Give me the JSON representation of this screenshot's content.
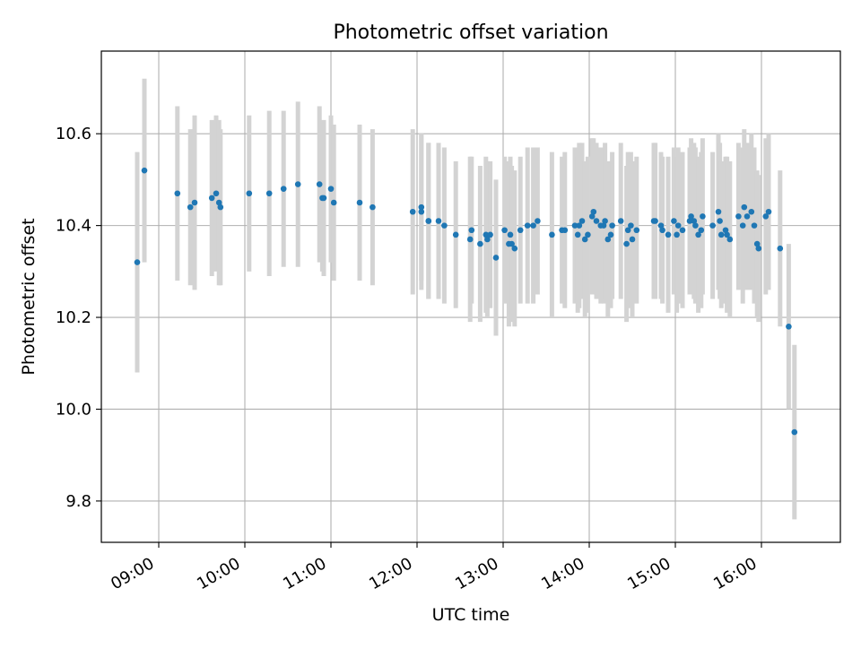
{
  "chart_data": {
    "type": "scatter",
    "title": "Photometric offset variation",
    "xlabel": "UTC time",
    "ylabel": "Photometric offset",
    "xlim": [
      "08:20",
      "16:55"
    ],
    "ylim": [
      9.71,
      10.78
    ],
    "x_ticks": [
      "09:00",
      "10:00",
      "11:00",
      "12:00",
      "13:00",
      "14:00",
      "15:00",
      "16:00"
    ],
    "y_ticks": [
      "9.8",
      "10.0",
      "10.2",
      "10.4",
      "10.6"
    ],
    "grid": true,
    "marker_color": "#1f77b4",
    "errorbar_color": "#d3d3d3",
    "series": [
      {
        "x": [
          "08:45",
          "08:50",
          "09:13",
          "09:22",
          "09:25",
          "09:37",
          "09:40",
          "09:42",
          "09:43",
          "10:03",
          "10:17",
          "10:27",
          "10:37",
          "10:52",
          "10:54",
          "10:55",
          "11:00",
          "11:02",
          "11:20",
          "11:29",
          "11:57",
          "12:03",
          "12:03",
          "12:08",
          "12:08",
          "12:15",
          "12:19",
          "12:27",
          "12:37",
          "12:38",
          "12:44",
          "12:48",
          "12:49",
          "12:51",
          "12:55",
          "13:01",
          "13:04",
          "13:05",
          "13:06",
          "13:08",
          "13:12",
          "13:17",
          "13:21",
          "13:24",
          "13:34",
          "13:41",
          "13:43",
          "13:50",
          "13:52",
          "13:53",
          "13:55",
          "13:57",
          "13:59",
          "14:02",
          "14:03",
          "14:05",
          "14:08",
          "14:10",
          "14:11",
          "14:13",
          "14:15",
          "14:16",
          "14:22",
          "14:26",
          "14:27",
          "14:29",
          "14:30",
          "14:33",
          "14:45",
          "14:46",
          "14:50",
          "14:51",
          "14:55",
          "14:59",
          "15:01",
          "15:02",
          "15:05",
          "15:10",
          "15:11",
          "15:13",
          "15:14",
          "15:16",
          "15:18",
          "15:19",
          "15:26",
          "15:30",
          "15:31",
          "15:32",
          "15:35",
          "15:36",
          "15:38",
          "15:44",
          "15:47",
          "15:48",
          "15:50",
          "15:53",
          "15:55",
          "15:57",
          "15:58",
          "16:03",
          "16:05",
          "16:13",
          "16:19",
          "16:23"
        ],
        "y": [
          10.32,
          10.52,
          10.47,
          10.44,
          10.45,
          10.46,
          10.47,
          10.45,
          10.44,
          10.47,
          10.47,
          10.48,
          10.49,
          10.49,
          10.46,
          10.46,
          10.48,
          10.45,
          10.45,
          10.44,
          10.43,
          10.44,
          10.43,
          10.41,
          10.41,
          10.41,
          10.4,
          10.38,
          10.37,
          10.39,
          10.36,
          10.38,
          10.37,
          10.38,
          10.33,
          10.39,
          10.36,
          10.38,
          10.36,
          10.35,
          10.39,
          10.4,
          10.4,
          10.41,
          10.38,
          10.39,
          10.39,
          10.4,
          10.38,
          10.4,
          10.41,
          10.37,
          10.38,
          10.42,
          10.43,
          10.41,
          10.4,
          10.4,
          10.41,
          10.37,
          10.38,
          10.4,
          10.41,
          10.36,
          10.39,
          10.4,
          10.37,
          10.39,
          10.41,
          10.41,
          10.4,
          10.39,
          10.38,
          10.41,
          10.38,
          10.4,
          10.39,
          10.41,
          10.42,
          10.41,
          10.4,
          10.38,
          10.39,
          10.42,
          10.4,
          10.43,
          10.41,
          10.38,
          10.39,
          10.38,
          10.37,
          10.42,
          10.4,
          10.44,
          10.42,
          10.43,
          10.4,
          10.36,
          10.35,
          10.42,
          10.43,
          10.35,
          10.18,
          9.95
        ],
        "yerr": [
          0.24,
          0.2,
          0.19,
          0.17,
          0.19,
          0.17,
          0.17,
          0.18,
          0.17,
          0.17,
          0.18,
          0.17,
          0.18,
          0.17,
          0.16,
          0.17,
          0.16,
          0.17,
          0.17,
          0.17,
          0.18,
          0.16,
          0.17,
          0.17,
          0.17,
          0.17,
          0.17,
          0.16,
          0.18,
          0.16,
          0.17,
          0.17,
          0.17,
          0.16,
          0.17,
          0.16,
          0.18,
          0.17,
          0.17,
          0.17,
          0.16,
          0.17,
          0.17,
          0.16,
          0.18,
          0.16,
          0.17,
          0.17,
          0.17,
          0.18,
          0.17,
          0.17,
          0.17,
          0.17,
          0.16,
          0.17,
          0.17,
          0.17,
          0.17,
          0.17,
          0.16,
          0.16,
          0.17,
          0.17,
          0.17,
          0.16,
          0.17,
          0.16,
          0.17,
          0.17,
          0.16,
          0.16,
          0.17,
          0.16,
          0.17,
          0.17,
          0.17,
          0.16,
          0.17,
          0.17,
          0.17,
          0.17,
          0.17,
          0.17,
          0.16,
          0.17,
          0.17,
          0.16,
          0.16,
          0.17,
          0.17,
          0.16,
          0.17,
          0.17,
          0.16,
          0.17,
          0.17,
          0.16,
          0.16,
          0.17,
          0.17,
          0.17,
          0.18,
          0.19
        ]
      }
    ]
  }
}
